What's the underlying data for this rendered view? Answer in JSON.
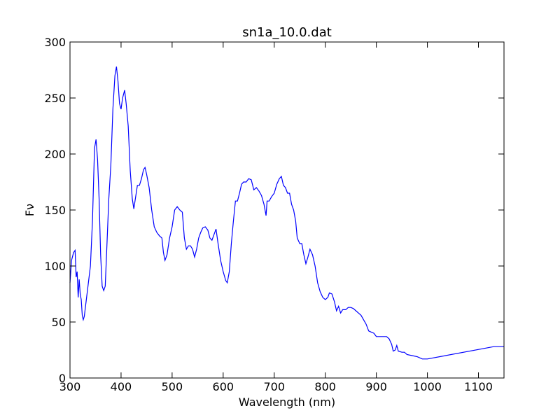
{
  "chart_data": {
    "type": "line",
    "title": "sn1a_10.0.dat",
    "x_label": "Wavelength (nm)",
    "y_label": "Fν",
    "xlim": [
      300,
      1150
    ],
    "ylim": [
      0,
      300
    ],
    "xticks": [
      300,
      400,
      500,
      600,
      700,
      800,
      900,
      1000,
      1100
    ],
    "yticks": [
      0,
      50,
      100,
      150,
      200,
      250,
      300
    ],
    "series": [
      {
        "color": "#0000ff",
        "x": [
          300,
          303,
          307,
          310,
          312,
          314,
          316,
          318,
          320,
          322,
          324,
          326,
          328,
          332,
          336,
          340,
          344,
          348,
          351,
          354,
          357,
          360,
          363,
          366,
          369,
          372,
          376,
          380,
          384,
          388,
          391,
          394,
          397,
          400,
          403,
          407,
          410,
          414,
          418,
          422,
          425,
          428,
          432,
          436,
          440,
          444,
          447,
          450,
          455,
          460,
          465,
          470,
          475,
          480,
          483,
          486,
          490,
          495,
          500,
          505,
          510,
          515,
          520,
          524,
          528,
          532,
          536,
          540,
          544,
          548,
          552,
          556,
          560,
          565,
          570,
          574,
          578,
          582,
          586,
          590,
          595,
          600,
          605,
          608,
          612,
          616,
          620,
          624,
          628,
          632,
          636,
          640,
          645,
          650,
          655,
          660,
          665,
          670,
          675,
          680,
          684,
          686,
          690,
          695,
          700,
          705,
          710,
          714,
          718,
          722,
          726,
          730,
          734,
          738,
          742,
          745,
          750,
          754,
          758,
          762,
          766,
          770,
          775,
          780,
          785,
          790,
          795,
          800,
          805,
          808,
          813,
          818,
          822,
          826,
          830,
          834,
          840,
          845,
          850,
          855,
          860,
          865,
          870,
          875,
          880,
          885,
          890,
          895,
          900,
          905,
          910,
          915,
          920,
          925,
          930,
          933,
          937,
          940,
          943,
          950,
          955,
          960,
          970,
          980,
          990,
          995,
          1000,
          1130,
          1150
        ],
        "values": [
          85,
          105,
          112,
          114,
          90,
          95,
          72,
          88,
          75,
          70,
          56,
          52,
          55,
          70,
          85,
          100,
          140,
          205,
          213,
          195,
          160,
          110,
          82,
          78,
          82,
          115,
          160,
          190,
          240,
          270,
          278,
          265,
          245,
          240,
          250,
          257,
          245,
          225,
          185,
          160,
          151,
          160,
          172,
          172,
          178,
          186,
          188,
          182,
          170,
          150,
          135,
          130,
          127,
          125,
          112,
          105,
          110,
          125,
          135,
          150,
          153,
          150,
          148,
          125,
          115,
          118,
          118,
          115,
          108,
          115,
          125,
          130,
          134,
          135,
          132,
          125,
          123,
          128,
          133,
          120,
          105,
          95,
          87,
          85,
          95,
          120,
          140,
          158,
          158,
          165,
          173,
          175,
          175,
          178,
          177,
          168,
          170,
          167,
          163,
          155,
          145,
          158,
          158,
          162,
          165,
          173,
          178,
          180,
          172,
          170,
          165,
          165,
          155,
          150,
          140,
          125,
          120,
          120,
          110,
          102,
          108,
          115,
          110,
          100,
          85,
          77,
          72,
          70,
          72,
          76,
          75,
          68,
          60,
          64,
          58,
          61,
          61,
          63,
          63,
          62,
          60,
          58,
          56,
          52,
          48,
          42,
          41,
          40,
          37,
          37,
          37,
          37,
          37,
          35,
          30,
          24,
          25,
          29,
          24,
          23,
          23,
          21,
          20,
          19,
          17,
          17,
          17,
          28,
          28
        ]
      }
    ]
  }
}
